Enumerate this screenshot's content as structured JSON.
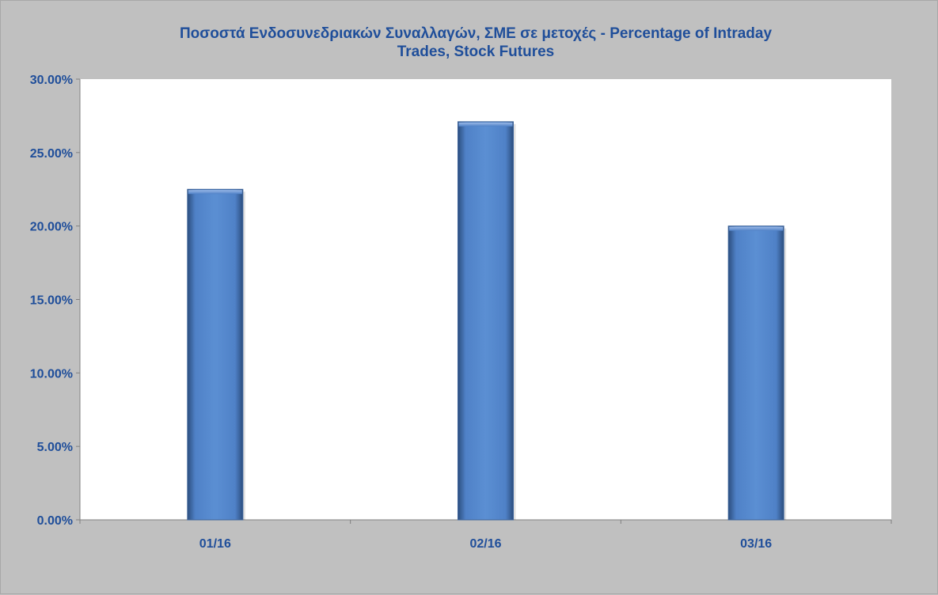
{
  "chart_data": {
    "type": "bar",
    "title_line1": "Ποσοστά Ενδοσυνεδριακών Συναλλαγών, ΣΜΕ σε μετοχές - Percentage of Intraday",
    "title_line2": "Trades, Stock Futures",
    "categories": [
      "01/16",
      "02/16",
      "03/16"
    ],
    "values": [
      22.5,
      27.1,
      20.0
    ],
    "ylim": [
      0,
      30
    ],
    "yticks": [
      0,
      5,
      10,
      15,
      20,
      25,
      30
    ],
    "ytick_labels": [
      "0.00%",
      "5.00%",
      "10.00%",
      "15.00%",
      "20.00%",
      "25.00%",
      "30.00%"
    ],
    "xlabel": "",
    "ylabel": "",
    "grid": false,
    "legend": "none",
    "bar_color": "#4f81c7",
    "text_color": "#1f4e9a",
    "plot_background": "#ffffff",
    "chart_background": "#c0c0c0"
  }
}
